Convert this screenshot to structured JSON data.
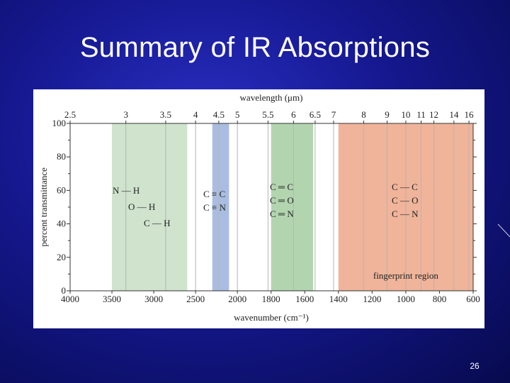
{
  "slide": {
    "title": "Summary of IR Absorptions",
    "page_number": "26",
    "background_color": "#15188f"
  },
  "chart_data": {
    "type": "band-chart",
    "top_axis": {
      "label": "wavelength (μm)",
      "ticks": [
        "2.5",
        "3",
        "3.5",
        "4",
        "4.5",
        "5",
        "5.5",
        "6",
        "6.5",
        "7",
        "8",
        "9",
        "10",
        "11",
        "12",
        "14",
        "16"
      ]
    },
    "bottom_axis": {
      "label": "wavenumber (cm⁻¹)",
      "ticks": [
        4000,
        3500,
        3000,
        2500,
        2000,
        1800,
        1600,
        1400,
        1200,
        1000,
        800,
        600
      ],
      "direction": "descending",
      "range": [
        4000,
        600
      ]
    },
    "y_axis": {
      "label": "percent transmittance",
      "ticks": [
        0,
        20,
        40,
        60,
        80,
        100
      ],
      "range": [
        0,
        100
      ]
    },
    "bands": [
      {
        "id": "single-bonds-to-H",
        "from": 3500,
        "to": 2600,
        "color": "#cfe3cd",
        "labels": [
          "N — H",
          "O — H",
          "C — H"
        ]
      },
      {
        "id": "triple-bonds",
        "from": 2300,
        "to": 2100,
        "color": "#a9bde2",
        "labels": [
          "C ≡ C",
          "C ≡ N"
        ]
      },
      {
        "id": "double-bonds",
        "from": 1800,
        "to": 1550,
        "color": "#b2d5b0",
        "labels": [
          "C ═ C",
          "C ═ O",
          "C ═ N"
        ]
      },
      {
        "id": "fingerprint",
        "from": 1400,
        "to": 600,
        "color": "#f0b49a",
        "labels": [
          "C — C",
          "C — O",
          "C — N"
        ],
        "caption": "fingerprint region"
      }
    ]
  }
}
